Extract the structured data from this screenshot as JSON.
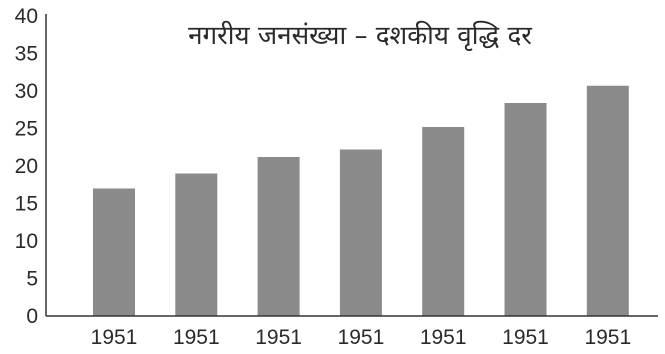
{
  "chart_data": {
    "type": "bar",
    "title": "नगरीय जनसंख्या – दशकीय वृद्धि दर",
    "xlabel": "",
    "ylabel": "",
    "categories": [
      "1951",
      "1951",
      "1951",
      "1951",
      "1951",
      "1951",
      "1951"
    ],
    "values": [
      17.0,
      19.0,
      21.2,
      22.2,
      25.2,
      28.4,
      30.7
    ],
    "ylim": [
      0,
      40
    ],
    "yticks": [
      "0",
      "5",
      "10",
      "15",
      "20",
      "25",
      "30",
      "35",
      "40"
    ],
    "grid": false,
    "legend": "none",
    "bar_color": "#8a8a8a"
  }
}
